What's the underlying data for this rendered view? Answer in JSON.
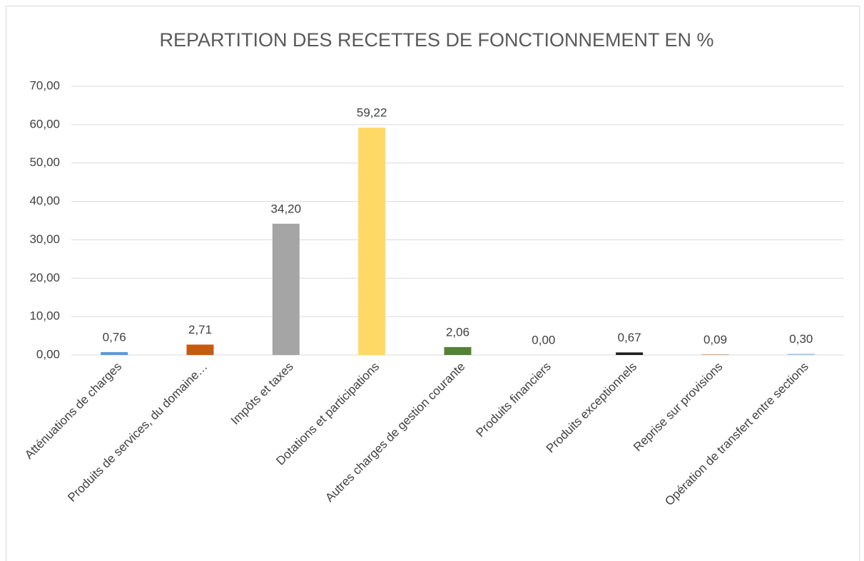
{
  "chart_data": {
    "type": "bar",
    "title": "REPARTITION DES RECETTES  DE FONCTIONNEMENT EN %",
    "categories": [
      "Atténuations de charges",
      "Produits de services, du domaine…",
      "Impôts et taxes",
      "Dotations et participations",
      "Autres charges de gestion courante",
      "Produits financiers",
      "Produits exceptionnels",
      "Reprise sur provisions",
      "Opération de transfert entre sections"
    ],
    "values": [
      0.76,
      2.71,
      34.2,
      59.22,
      2.06,
      0.0,
      0.67,
      0.09,
      0.3
    ],
    "value_labels": [
      "0,76",
      "2,71",
      "34,20",
      "59,22",
      "2,06",
      "0,00",
      "0,67",
      "0,09",
      "0,30"
    ],
    "colors": [
      "#5b9bd5",
      "#c55a11",
      "#a5a5a5",
      "#ffd966",
      "#548235",
      "#264478",
      "#1e1e1e",
      "#9e480e",
      "#9dc3e6"
    ],
    "ylim": [
      0,
      70
    ],
    "yticks": [
      {
        "value": 0,
        "label": "0,00"
      },
      {
        "value": 10,
        "label": "10,00"
      },
      {
        "value": 20,
        "label": "20,00"
      },
      {
        "value": 30,
        "label": "30,00"
      },
      {
        "value": 40,
        "label": "40,00"
      },
      {
        "value": 50,
        "label": "50,00"
      },
      {
        "value": 60,
        "label": "60,00"
      },
      {
        "value": 70,
        "label": "70,00"
      }
    ],
    "grid": true
  }
}
